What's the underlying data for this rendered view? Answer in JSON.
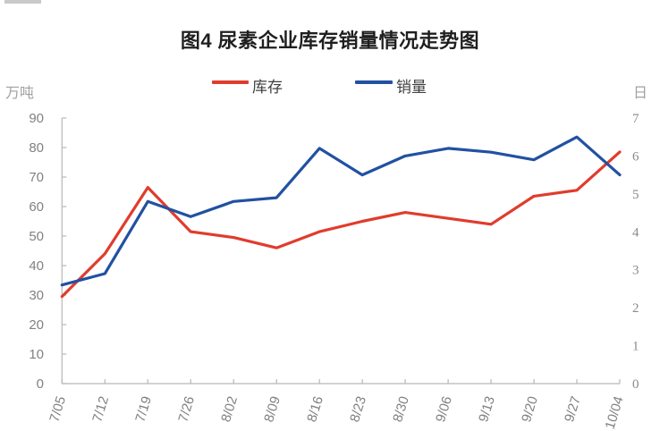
{
  "figure": {
    "title": "图4 尿素企业库存销量情况走势图"
  },
  "chart_data": {
    "type": "line",
    "title": "图4 尿素企业库存销量情况走势图",
    "categories": [
      "7/05",
      "7/12",
      "7/19",
      "7/26",
      "8/02",
      "8/09",
      "8/16",
      "8/23",
      "8/30",
      "9/06",
      "9/13",
      "9/20",
      "9/27",
      "10/04"
    ],
    "series": [
      {
        "name": "库存",
        "axis": "left",
        "color": "#e03c2d",
        "values": [
          29.5,
          44,
          66.5,
          51.5,
          49.5,
          46,
          51.5,
          55,
          58,
          56,
          54,
          63.5,
          65.5,
          78.5
        ]
      },
      {
        "name": "销量",
        "axis": "right",
        "color": "#2151a1",
        "values": [
          2.6,
          2.9,
          4.8,
          4.4,
          4.8,
          4.9,
          6.2,
          5.5,
          6.0,
          6.2,
          6.1,
          5.9,
          6.5,
          5.5
        ]
      }
    ],
    "left_axis": {
      "unit": "万吨",
      "min": 0,
      "max": 90,
      "step": 10
    },
    "right_axis": {
      "unit": "日",
      "min": 0,
      "max": 7,
      "step": 1
    },
    "legend_position": "top",
    "grid": false,
    "x_label_rotation_deg": -73
  }
}
